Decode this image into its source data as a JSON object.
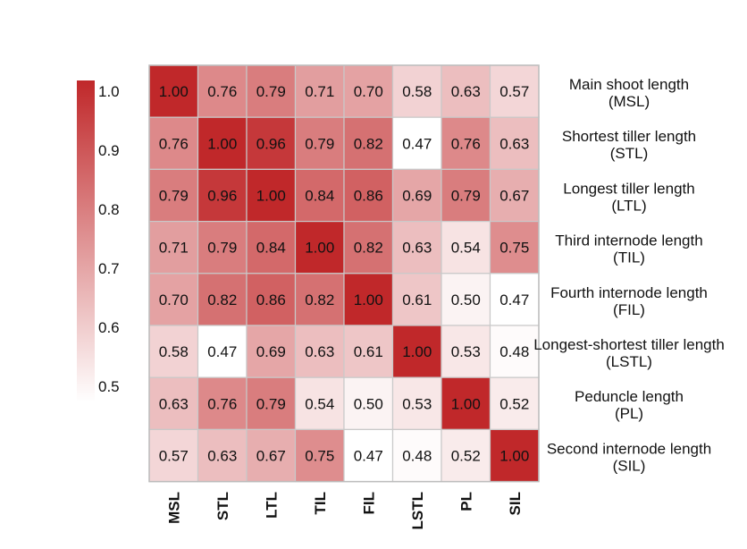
{
  "chart_data": {
    "type": "heatmap",
    "columns": [
      "MSL",
      "STL",
      "LTL",
      "TIL",
      "FIL",
      "LSTL",
      "PL",
      "SIL"
    ],
    "rows": [
      {
        "name": "Main shoot length",
        "abbr": "(MSL)"
      },
      {
        "name": "Shortest tiller length",
        "abbr": "(STL)"
      },
      {
        "name": "Longest tiller length",
        "abbr": "(LTL)"
      },
      {
        "name": "Third internode length",
        "abbr": "(TIL)"
      },
      {
        "name": "Fourth internode length",
        "abbr": "(FIL)"
      },
      {
        "name": "Longest-shortest tiller length",
        "abbr": "(LSTL)"
      },
      {
        "name": "Peduncle length",
        "abbr": "(PL)"
      },
      {
        "name": "Second internode length",
        "abbr": "(SIL)"
      }
    ],
    "values": [
      [
        1.0,
        0.76,
        0.79,
        0.71,
        0.7,
        0.58,
        0.63,
        0.57
      ],
      [
        0.76,
        1.0,
        0.96,
        0.79,
        0.82,
        0.47,
        0.76,
        0.63
      ],
      [
        0.79,
        0.96,
        1.0,
        0.84,
        0.86,
        0.69,
        0.79,
        0.67
      ],
      [
        0.71,
        0.79,
        0.84,
        1.0,
        0.82,
        0.63,
        0.54,
        0.75
      ],
      [
        0.7,
        0.82,
        0.86,
        0.82,
        1.0,
        0.61,
        0.5,
        0.47
      ],
      [
        0.58,
        0.47,
        0.69,
        0.63,
        0.61,
        1.0,
        0.53,
        0.48
      ],
      [
        0.63,
        0.76,
        0.79,
        0.54,
        0.5,
        0.53,
        1.0,
        0.52
      ],
      [
        0.57,
        0.63,
        0.67,
        0.75,
        0.47,
        0.48,
        0.52,
        1.0
      ]
    ],
    "colorscale": {
      "min": 0.47,
      "max": 1.0,
      "low_color": "#ffffff",
      "high_color": "#c0282a",
      "ticks": [
        "1.0",
        "0.9",
        "0.8",
        "0.7",
        "0.6",
        "0.5"
      ],
      "tick_values": [
        1.0,
        0.9,
        0.8,
        0.7,
        0.6,
        0.5
      ]
    },
    "legend_placement": "left"
  }
}
